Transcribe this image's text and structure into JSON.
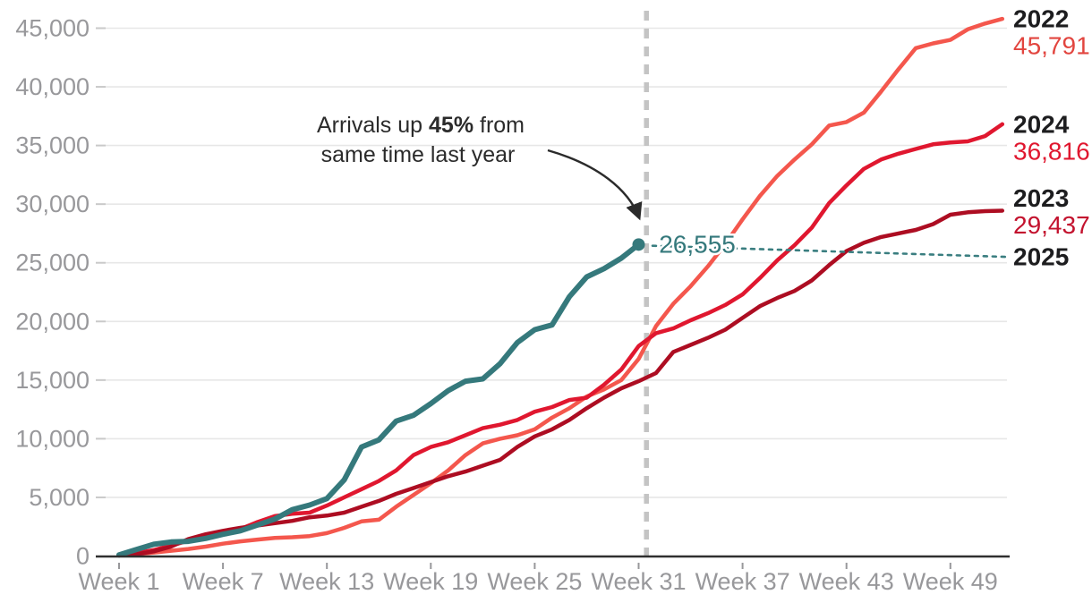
{
  "chart_data": {
    "type": "line",
    "title": "",
    "x_axis": {
      "ticks": [
        {
          "week": 1,
          "label": "Week 1"
        },
        {
          "week": 7,
          "label": "Week 7"
        },
        {
          "week": 13,
          "label": "Week 13"
        },
        {
          "week": 19,
          "label": "Week 19"
        },
        {
          "week": 25,
          "label": "Week 25"
        },
        {
          "week": 31,
          "label": "Week 31"
        },
        {
          "week": 37,
          "label": "Week 37"
        },
        {
          "week": 43,
          "label": "Week 43"
        },
        {
          "week": 49,
          "label": "Week 49"
        }
      ],
      "min_week": 1,
      "max_week": 52
    },
    "y_axis": {
      "ticks": [
        {
          "value": 0,
          "label": "0"
        },
        {
          "value": 5000,
          "label": "5,000"
        },
        {
          "value": 10000,
          "label": "10,000"
        },
        {
          "value": 15000,
          "label": "15,000"
        },
        {
          "value": 20000,
          "label": "20,000"
        },
        {
          "value": 25000,
          "label": "25,000"
        },
        {
          "value": 30000,
          "label": "30,000"
        },
        {
          "value": 35000,
          "label": "35,000"
        },
        {
          "value": 40000,
          "label": "40,000"
        },
        {
          "value": 45000,
          "label": "45,000"
        }
      ],
      "max": 46500,
      "grid": true
    },
    "legend_position": "right-edge-labels",
    "series": [
      {
        "name": "2022",
        "color": "#F4574D",
        "value_label": "45,791",
        "value_color": "#E2453F",
        "width": 4.5,
        "values": [
          60,
          150,
          300,
          450,
          600,
          800,
          1050,
          1250,
          1400,
          1550,
          1600,
          1700,
          1950,
          2400,
          2950,
          3100,
          4200,
          5200,
          6200,
          7300,
          8600,
          9600,
          10000,
          10300,
          10800,
          11800,
          12600,
          13600,
          14200,
          15000,
          16800,
          19600,
          21500,
          23000,
          24700,
          26600,
          28700,
          30700,
          32400,
          33800,
          35100,
          36700,
          37000,
          37800,
          39600,
          41500,
          43300,
          43700,
          44000,
          44900,
          45400,
          45791
        ]
      },
      {
        "name": "2024",
        "color": "#E0172F",
        "value_label": "36,816",
        "value_color": "#E0172F",
        "width": 4.5,
        "values": [
          100,
          250,
          500,
          900,
          1300,
          1600,
          1900,
          2300,
          2900,
          3400,
          3600,
          3700,
          4300,
          5000,
          5700,
          6400,
          7300,
          8600,
          9300,
          9700,
          10300,
          10900,
          11200,
          11600,
          12300,
          12700,
          13300,
          13500,
          14600,
          15900,
          17900,
          19000,
          19400,
          20100,
          20700,
          21400,
          22300,
          23700,
          25200,
          26500,
          28000,
          30100,
          31600,
          33000,
          33800,
          34300,
          34700,
          35100,
          35250,
          35350,
          35800,
          36816
        ]
      },
      {
        "name": "2023",
        "color": "#AD0D22",
        "value_label": "29,437",
        "value_color": "#C3122E",
        "width": 4.5,
        "values": [
          80,
          150,
          400,
          800,
          1450,
          1850,
          2150,
          2400,
          2600,
          2800,
          3000,
          3300,
          3450,
          3700,
          4200,
          4700,
          5300,
          5800,
          6300,
          6800,
          7200,
          7700,
          8200,
          9300,
          10200,
          10800,
          11600,
          12600,
          13500,
          14300,
          14900,
          15600,
          17400,
          18000,
          18600,
          19300,
          20300,
          21300,
          22000,
          22600,
          23500,
          24800,
          26000,
          26700,
          27200,
          27500,
          27800,
          28300,
          29100,
          29300,
          29400,
          29437
        ]
      },
      {
        "name": "2025",
        "color": "#35797C",
        "value_label": "",
        "value_color": "#35797C",
        "width": 6,
        "end_dot": true,
        "end_label": "26,555",
        "values": [
          100,
          550,
          1000,
          1200,
          1250,
          1500,
          1850,
          2150,
          2650,
          3150,
          3950,
          4350,
          4900,
          6500,
          9300,
          9900,
          11500,
          12000,
          13000,
          14100,
          14900,
          15100,
          16400,
          18200,
          19300,
          19700,
          22100,
          23800,
          24500,
          25400,
          26555
        ]
      }
    ],
    "marker_line": {
      "week": 31.45,
      "color": "#C4C4C4",
      "style": "dashed"
    },
    "projection": {
      "from_week": 31.8,
      "from_value": 26450,
      "to_week": 52.3,
      "to_value": 25500,
      "color": "#3A7E80",
      "style": "dotted"
    },
    "annotation": {
      "line1_prefix": "Arrivals up ",
      "line1_bold": "45%",
      "line1_suffix": " from",
      "line2": "same time last year",
      "color": "#2B2B2B",
      "points_to_value": "26,555"
    },
    "colors": {
      "grid": "#E7E7E7",
      "grid_stub": "#C9C9C9",
      "axis": "#2F2F2F",
      "axis_text": "#98989B",
      "year_label_text": "#1D1D1F"
    }
  }
}
